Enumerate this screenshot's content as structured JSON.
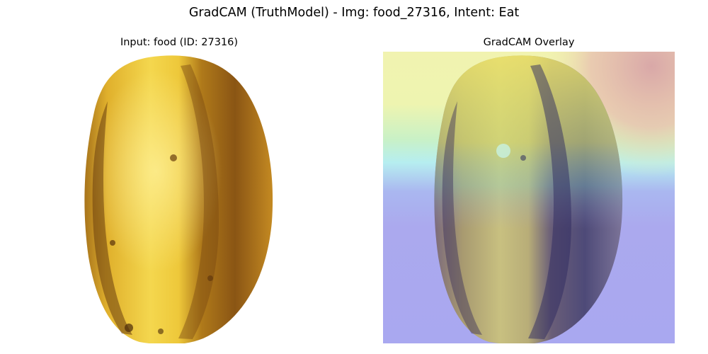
{
  "figure": {
    "title": "GradCAM (TruthModel) - Img: food_27316, Intent: Eat"
  },
  "panels": [
    {
      "title": "Input: food (ID: 27316)",
      "image": "starfruit (carambola), yellow, on white background"
    },
    {
      "title": "GradCAM Overlay",
      "image": "starfruit with jet-colormap GradCAM heatmap overlay"
    }
  ],
  "colors": {
    "fruit_light": "#f2d24a",
    "fruit_mid": "#d9a520",
    "fruit_dark": "#7a4a12",
    "heat_red": "#d9aaa8",
    "heat_yellow": "#f1f3b0",
    "heat_cyan": "#b6f0ee",
    "heat_blue": "#a9a8f0"
  }
}
